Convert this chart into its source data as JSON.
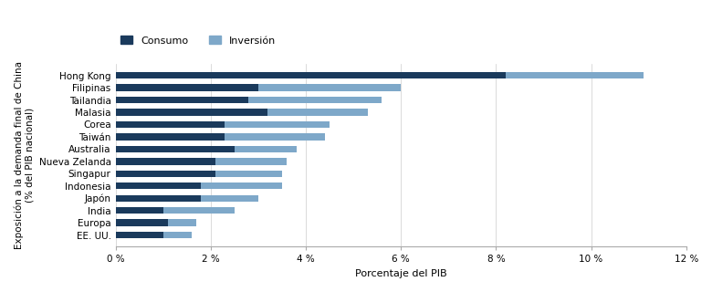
{
  "categories": [
    "Hong Kong",
    "Filipinas",
    "Tailandia",
    "Malasia",
    "Corea",
    "Taiwán",
    "Australia",
    "Nueva Zelanda",
    "Singapur",
    "Indonesia",
    "Japón",
    "India",
    "Europa",
    "EE. UU."
  ],
  "consumo": [
    8.2,
    3.0,
    2.8,
    3.2,
    2.3,
    2.3,
    2.5,
    2.1,
    2.1,
    1.8,
    1.8,
    1.0,
    1.1,
    1.0
  ],
  "inversion": [
    2.9,
    3.0,
    2.8,
    2.1,
    2.2,
    2.1,
    1.3,
    1.5,
    1.4,
    1.7,
    1.2,
    1.5,
    0.6,
    0.6
  ],
  "color_consumo": "#1a3a5c",
  "color_inversion": "#7ea8c9",
  "xlabel": "Porcentaje del PIB",
  "ylabel": "Exposición a la demanda final de China\n(% del PIB nacional)",
  "legend_consumo": "Consumo",
  "legend_inversion": "Inversión",
  "xlim": [
    0,
    12
  ],
  "xtick_labels": [
    "0 %",
    "2 %",
    "4 %",
    "6 %",
    "8 %",
    "10 %",
    "12 %"
  ],
  "xtick_values": [
    0,
    2,
    4,
    6,
    8,
    10,
    12
  ],
  "background_color": "#ffffff",
  "bar_height": 0.55
}
